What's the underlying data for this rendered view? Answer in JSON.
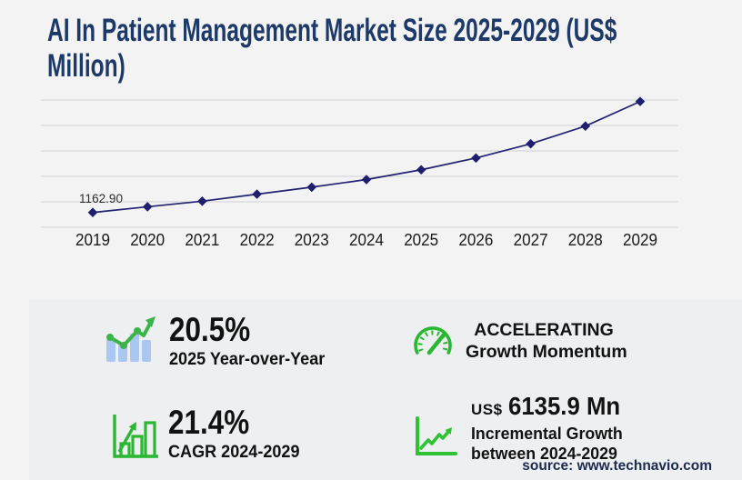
{
  "header": {
    "title_line1": "AI In Patient Management Market Size 2025-2029 (US$",
    "title_line2": "Million)"
  },
  "chart_data": {
    "type": "line",
    "title": "AI In Patient Management Market Size 2025-2029 (US$ Million)",
    "x": [
      "2019",
      "2020",
      "2021",
      "2022",
      "2023",
      "2024",
      "2025",
      "2026",
      "2027",
      "2028",
      "2029"
    ],
    "values": [
      1162.9,
      1610,
      2050,
      2600,
      3150,
      3748.7,
      4517.2,
      5440,
      6560,
      7950,
      9884.6
    ],
    "first_point_label": "1162.90",
    "xlabel": "",
    "ylabel": "",
    "ylim": [
      0,
      10000
    ],
    "gridline_step": 2000,
    "grid": true,
    "legend": false,
    "marker": "diamond",
    "line_color": "#232270",
    "marker_color": "#201f6e"
  },
  "stats": {
    "yoy": {
      "value": "20.5%",
      "label": "2025 Year-over-Year",
      "icon": "bar-chart-trend-icon"
    },
    "momentum": {
      "line1": "ACCELERATING",
      "line2": "Growth Momentum",
      "icon": "speedometer-icon"
    },
    "cagr": {
      "value": "21.4%",
      "label": "CAGR 2024-2029",
      "icon": "growth-bars-icon"
    },
    "incremental": {
      "currency": "US$",
      "value": "6135.9 Mn",
      "label_line1": "Incremental Growth",
      "label_line2": "between 2024-2029",
      "icon": "line-growth-icon"
    }
  },
  "footer": {
    "source": "source: www.technavio.com"
  },
  "colors": {
    "background": "#f3f3f4",
    "panel": "#eeeff0",
    "title_navy": "#1d3967",
    "grid": "#cfd0d3",
    "accent_green": "#2ab732",
    "trend_green": "#3cb44a",
    "icon_bar_blue": "#a9c7f0",
    "text_dark": "#121212",
    "source_navy": "#1b2b4d"
  }
}
